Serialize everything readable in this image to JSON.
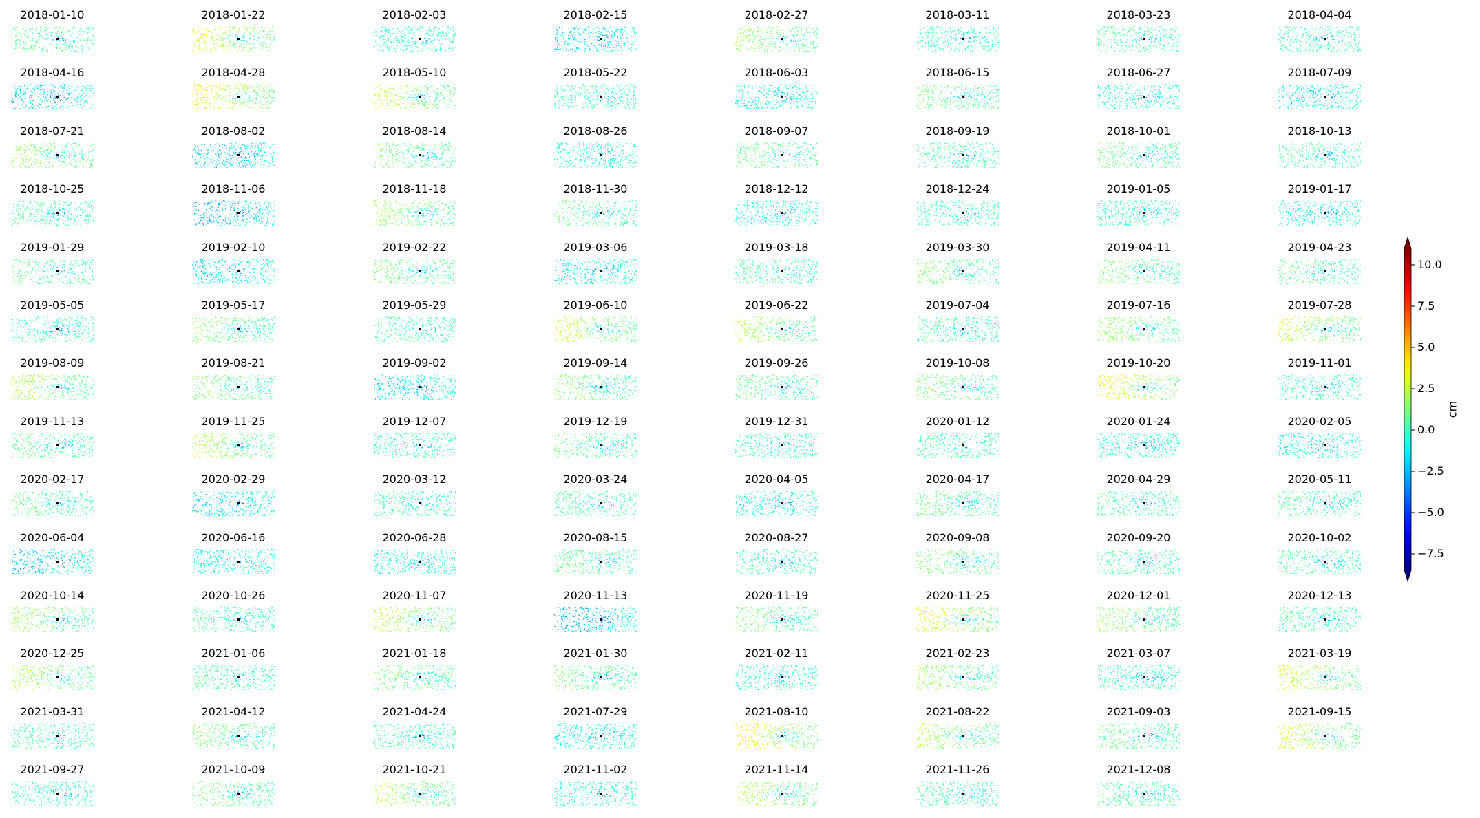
{
  "chart_data": {
    "type": "heatmap",
    "title": "",
    "colormap": "jet",
    "colorbar": {
      "label": "cm",
      "vmin": -8.5,
      "vmax": 11,
      "extend": "both",
      "ticks": [
        {
          "value": 10.0,
          "label": "10.0"
        },
        {
          "value": 7.5,
          "label": "7.5"
        },
        {
          "value": 5.0,
          "label": "5.0"
        },
        {
          "value": 2.5,
          "label": "2.5"
        },
        {
          "value": 0.0,
          "label": "0.0"
        },
        {
          "value": -2.5,
          "label": "−2.5"
        },
        {
          "value": -5.0,
          "label": "−5.0"
        },
        {
          "value": -7.5,
          "label": "−7.5"
        }
      ]
    },
    "grid": {
      "rows": 14,
      "columns": 8
    },
    "panels": [
      {
        "date": "2018-01-10",
        "bias": 1.0
      },
      {
        "date": "2018-01-22",
        "bias": 3.5
      },
      {
        "date": "2018-02-03",
        "bias": -0.5
      },
      {
        "date": "2018-02-15",
        "bias": -2.0
      },
      {
        "date": "2018-02-27",
        "bias": 2.0
      },
      {
        "date": "2018-03-11",
        "bias": 0.0
      },
      {
        "date": "2018-03-23",
        "bias": 0.5
      },
      {
        "date": "2018-04-04",
        "bias": 0.0
      },
      {
        "date": "2018-04-16",
        "bias": -2.5
      },
      {
        "date": "2018-04-28",
        "bias": 4.0
      },
      {
        "date": "2018-05-10",
        "bias": 3.0
      },
      {
        "date": "2018-05-22",
        "bias": 0.0
      },
      {
        "date": "2018-06-03",
        "bias": -1.0
      },
      {
        "date": "2018-06-15",
        "bias": 1.5
      },
      {
        "date": "2018-06-27",
        "bias": -0.5
      },
      {
        "date": "2018-07-09",
        "bias": -1.5
      },
      {
        "date": "2018-07-21",
        "bias": 2.0
      },
      {
        "date": "2018-08-02",
        "bias": -2.5
      },
      {
        "date": "2018-08-14",
        "bias": 1.5
      },
      {
        "date": "2018-08-26",
        "bias": -0.5
      },
      {
        "date": "2018-09-07",
        "bias": 1.0
      },
      {
        "date": "2018-09-19",
        "bias": 0.5
      },
      {
        "date": "2018-10-01",
        "bias": 1.0
      },
      {
        "date": "2018-10-13",
        "bias": 0.5
      },
      {
        "date": "2018-10-25",
        "bias": 0.5
      },
      {
        "date": "2018-11-06",
        "bias": -3.0
      },
      {
        "date": "2018-11-18",
        "bias": 2.0
      },
      {
        "date": "2018-11-30",
        "bias": 1.0
      },
      {
        "date": "2018-12-12",
        "bias": -1.0
      },
      {
        "date": "2018-12-24",
        "bias": 0.0
      },
      {
        "date": "2019-01-05",
        "bias": 0.0
      },
      {
        "date": "2019-01-17",
        "bias": -1.0
      },
      {
        "date": "2019-01-29",
        "bias": 1.0
      },
      {
        "date": "2019-02-10",
        "bias": -2.0
      },
      {
        "date": "2019-02-22",
        "bias": 1.5
      },
      {
        "date": "2019-03-06",
        "bias": -1.5
      },
      {
        "date": "2019-03-18",
        "bias": 0.5
      },
      {
        "date": "2019-03-30",
        "bias": 1.5
      },
      {
        "date": "2019-04-11",
        "bias": 1.5
      },
      {
        "date": "2019-04-23",
        "bias": 1.0
      },
      {
        "date": "2019-05-05",
        "bias": 0.0
      },
      {
        "date": "2019-05-17",
        "bias": 1.5
      },
      {
        "date": "2019-05-29",
        "bias": 0.5
      },
      {
        "date": "2019-06-10",
        "bias": 3.0
      },
      {
        "date": "2019-06-22",
        "bias": 2.5
      },
      {
        "date": "2019-07-04",
        "bias": 0.5
      },
      {
        "date": "2019-07-16",
        "bias": 2.0
      },
      {
        "date": "2019-07-28",
        "bias": 3.0
      },
      {
        "date": "2019-08-09",
        "bias": 2.5
      },
      {
        "date": "2019-08-21",
        "bias": 1.5
      },
      {
        "date": "2019-09-02",
        "bias": -2.0
      },
      {
        "date": "2019-09-14",
        "bias": 1.5
      },
      {
        "date": "2019-09-26",
        "bias": 1.0
      },
      {
        "date": "2019-10-08",
        "bias": 1.5
      },
      {
        "date": "2019-10-20",
        "bias": 4.0
      },
      {
        "date": "2019-11-01",
        "bias": 0.0
      },
      {
        "date": "2019-11-13",
        "bias": 1.0
      },
      {
        "date": "2019-11-25",
        "bias": 2.5
      },
      {
        "date": "2019-12-07",
        "bias": 0.0
      },
      {
        "date": "2019-12-19",
        "bias": 1.0
      },
      {
        "date": "2019-12-31",
        "bias": 0.0
      },
      {
        "date": "2020-01-12",
        "bias": 0.5
      },
      {
        "date": "2020-01-24",
        "bias": -0.5
      },
      {
        "date": "2020-02-05",
        "bias": -1.5
      },
      {
        "date": "2020-02-17",
        "bias": 1.0
      },
      {
        "date": "2020-02-29",
        "bias": -2.0
      },
      {
        "date": "2020-03-12",
        "bias": 0.5
      },
      {
        "date": "2020-03-24",
        "bias": 0.5
      },
      {
        "date": "2020-04-05",
        "bias": -1.0
      },
      {
        "date": "2020-04-17",
        "bias": 1.0
      },
      {
        "date": "2020-04-29",
        "bias": 0.5
      },
      {
        "date": "2020-05-11",
        "bias": 0.5
      },
      {
        "date": "2020-06-04",
        "bias": -2.5
      },
      {
        "date": "2020-06-16",
        "bias": -1.5
      },
      {
        "date": "2020-06-28",
        "bias": -1.0
      },
      {
        "date": "2020-08-15",
        "bias": 1.0
      },
      {
        "date": "2020-08-27",
        "bias": 0.0
      },
      {
        "date": "2020-09-08",
        "bias": 1.5
      },
      {
        "date": "2020-09-20",
        "bias": 0.5
      },
      {
        "date": "2020-10-02",
        "bias": 0.5
      },
      {
        "date": "2020-10-14",
        "bias": 2.0
      },
      {
        "date": "2020-10-26",
        "bias": 0.5
      },
      {
        "date": "2020-11-07",
        "bias": 3.0
      },
      {
        "date": "2020-11-13",
        "bias": -3.0
      },
      {
        "date": "2020-11-19",
        "bias": 1.5
      },
      {
        "date": "2020-11-25",
        "bias": 3.5
      },
      {
        "date": "2020-12-01",
        "bias": 2.0
      },
      {
        "date": "2020-12-13",
        "bias": 0.5
      },
      {
        "date": "2020-12-25",
        "bias": 2.5
      },
      {
        "date": "2021-01-06",
        "bias": 0.5
      },
      {
        "date": "2021-01-18",
        "bias": 1.5
      },
      {
        "date": "2021-01-30",
        "bias": 1.5
      },
      {
        "date": "2021-02-11",
        "bias": 0.0
      },
      {
        "date": "2021-02-23",
        "bias": 2.0
      },
      {
        "date": "2021-03-07",
        "bias": 0.0
      },
      {
        "date": "2021-03-19",
        "bias": 3.0
      },
      {
        "date": "2021-03-31",
        "bias": 0.5
      },
      {
        "date": "2021-04-12",
        "bias": 1.5
      },
      {
        "date": "2021-04-24",
        "bias": 0.5
      },
      {
        "date": "2021-07-29",
        "bias": -1.5
      },
      {
        "date": "2021-08-10",
        "bias": 4.0
      },
      {
        "date": "2021-08-22",
        "bias": 2.5
      },
      {
        "date": "2021-09-03",
        "bias": 1.0
      },
      {
        "date": "2021-09-15",
        "bias": 3.0
      },
      {
        "date": "2021-09-27",
        "bias": 0.0
      },
      {
        "date": "2021-10-09",
        "bias": 1.5
      },
      {
        "date": "2021-10-21",
        "bias": 2.5
      },
      {
        "date": "2021-11-02",
        "bias": -0.5
      },
      {
        "date": "2021-11-14",
        "bias": 2.5
      },
      {
        "date": "2021-11-26",
        "bias": 0.5
      },
      {
        "date": "2021-12-08",
        "bias": 0.5
      }
    ]
  }
}
